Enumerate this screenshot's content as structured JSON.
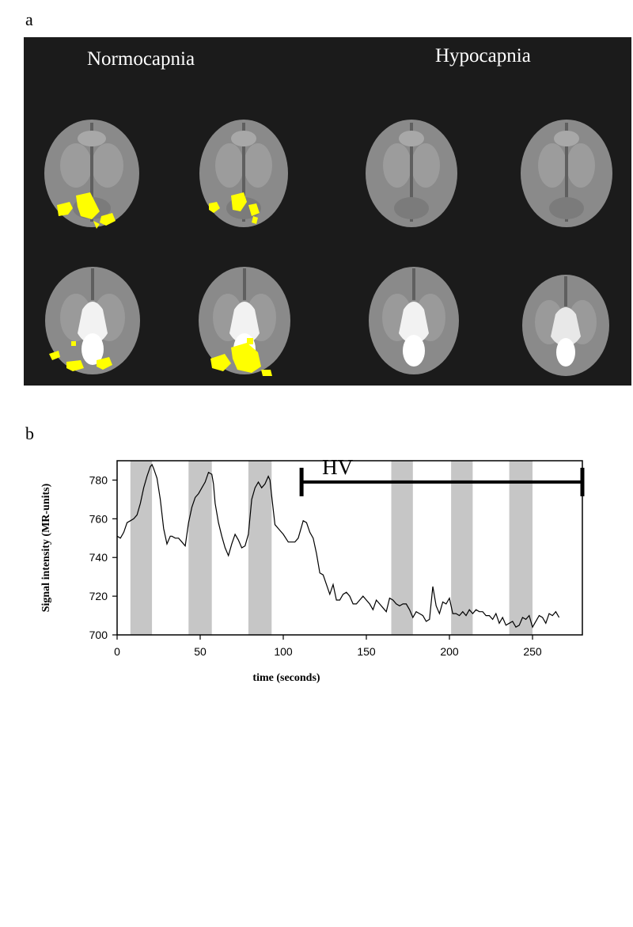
{
  "figure": {
    "panel_a_letter": "a",
    "panel_b_letter": "b",
    "panel_a": {
      "left_condition": "Normocapnia",
      "right_condition": "Hypocapnia",
      "activation_color": "#ffff00",
      "background_color": "#1b1b1b"
    }
  },
  "chart_data": {
    "type": "line",
    "xlabel": "time (seconds)",
    "ylabel": "Signal intensity (MR-units)",
    "xlim": [
      0,
      280
    ],
    "ylim": [
      700,
      790
    ],
    "xticks": [
      0,
      50,
      100,
      150,
      200,
      250
    ],
    "yticks": [
      700,
      720,
      740,
      760,
      780
    ],
    "grid": false,
    "stimulus_blocks": [
      [
        8,
        21
      ],
      [
        43,
        57
      ],
      [
        79,
        93
      ],
      [
        165,
        178
      ],
      [
        201,
        214
      ],
      [
        236,
        250
      ]
    ],
    "annotation": {
      "text": "HV",
      "x_start": 111,
      "x_end": 280,
      "y": 779
    },
    "series": [
      {
        "x": [
          0,
          2,
          4,
          6,
          8,
          10,
          12,
          14,
          16,
          18,
          20,
          21,
          22,
          24,
          26,
          28,
          30,
          32,
          33,
          35,
          37,
          39,
          41,
          43,
          45,
          47,
          49,
          51,
          53,
          55,
          57,
          58,
          59,
          61,
          63,
          65,
          67,
          69,
          71,
          73,
          75,
          77,
          79,
          81,
          83,
          85,
          87,
          89,
          91,
          92,
          93,
          95,
          97,
          100,
          103,
          105,
          107,
          109,
          112,
          114,
          116,
          118,
          120,
          122,
          124,
          126,
          128,
          130,
          132,
          134,
          136,
          138,
          140,
          142,
          144,
          146,
          148,
          150,
          152,
          154,
          156,
          158,
          160,
          162,
          164,
          166,
          168,
          170,
          172,
          174,
          176,
          178,
          180,
          182,
          184,
          186,
          188,
          190,
          192,
          194,
          196,
          198,
          200,
          202,
          204,
          206,
          208,
          210,
          212,
          214,
          216,
          218,
          220,
          222,
          224,
          226,
          228,
          230,
          232,
          234,
          236,
          238,
          240,
          242,
          244,
          246,
          248,
          250,
          252,
          254,
          256,
          258,
          260,
          262,
          264,
          266
        ],
        "y": [
          751,
          750,
          753,
          758,
          759,
          760,
          762,
          768,
          776,
          782,
          787,
          788,
          786,
          781,
          770,
          755,
          747,
          751,
          751,
          750,
          750,
          748,
          746,
          758,
          766,
          771,
          773,
          776,
          779,
          784,
          783,
          778,
          768,
          758,
          751,
          745,
          741,
          747,
          752,
          749,
          745,
          746,
          752,
          770,
          776,
          779,
          776,
          778,
          782,
          780,
          772,
          757,
          755,
          752,
          748,
          748,
          748,
          750,
          759,
          758,
          753,
          750,
          742,
          732,
          731,
          726,
          721,
          726,
          718,
          718,
          721,
          722,
          720,
          716,
          716,
          718,
          720,
          718,
          716,
          713,
          718,
          716,
          714,
          712,
          719,
          718,
          716,
          715,
          716,
          716,
          713,
          709,
          712,
          711,
          710,
          707,
          708,
          725,
          715,
          711,
          717,
          716,
          719,
          711,
          711,
          710,
          712,
          710,
          713,
          711,
          713,
          712,
          712,
          710,
          710,
          708,
          711,
          706,
          709,
          705,
          706,
          707,
          704,
          705,
          709,
          708,
          710,
          704,
          707,
          710,
          709,
          706,
          711,
          710,
          712,
          709
        ]
      }
    ]
  }
}
